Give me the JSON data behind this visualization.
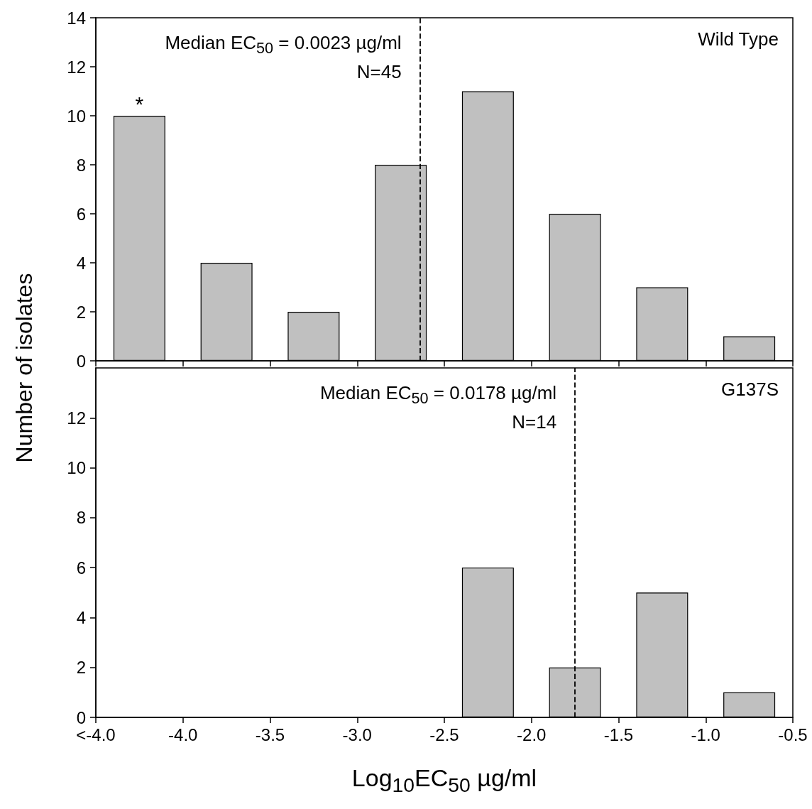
{
  "chart_data": [
    {
      "type": "bar",
      "ylabel": "Number of isolates",
      "x": [
        -4.25,
        -3.75,
        -3.25,
        -2.75,
        -2.25,
        -1.75,
        -1.25,
        -0.75
      ],
      "values": [
        10,
        4,
        2,
        8,
        11,
        6,
        3,
        1
      ],
      "color": "#c0c0c0",
      "xlim": [
        -4.5,
        -0.5
      ],
      "xticks": [
        -4.5,
        -4,
        -3.5,
        -3,
        -2.5,
        -2,
        -1.5,
        -1,
        -0.5
      ],
      "ylim": [
        0,
        14
      ],
      "yticks": [
        0,
        2,
        4,
        6,
        8,
        10,
        12,
        14
      ],
      "tick_labels": "y",
      "grid": false,
      "ref_lines": [
        {
          "axis": "x",
          "value": -2.64,
          "line_style": "dashed"
        }
      ],
      "annotations": [
        "Median EC$_{50}$ = 0.0023 µg/ml",
        "N=45",
        "Wild Type",
        {
          "text": "*",
          "x": -4.25,
          "y": 10
        }
      ]
    },
    {
      "type": "bar",
      "xlabel": "Log$_{10}$EC$_{50}$ µg/ml",
      "x": [
        -2.25,
        -1.75,
        -1.25,
        -0.75
      ],
      "values": [
        6,
        2,
        5,
        1
      ],
      "color": "#c0c0c0",
      "xlim": [
        -4.5,
        -0.5
      ],
      "xticks": [
        {
          "value": -4.5,
          "label": "<-4.0"
        },
        {
          "value": -4,
          "label": "-4.0"
        },
        -3.5,
        {
          "value": -3,
          "label": "-3.0"
        },
        -2.5,
        {
          "value": -2,
          "label": "-2.0"
        },
        -1.5,
        {
          "value": -1,
          "label": "-1.0"
        },
        -0.5
      ],
      "ylim": [
        0,
        14
      ],
      "yticks": [
        0,
        2,
        4,
        6,
        8,
        10,
        12
      ],
      "grid": false,
      "ref_lines": [
        {
          "axis": "x",
          "value": -1.75,
          "line_style": "dashed"
        }
      ],
      "annotations": [
        "Median EC$_{50}$ = 0.0178 µg/ml",
        "N=14",
        "G137S"
      ]
    }
  ]
}
